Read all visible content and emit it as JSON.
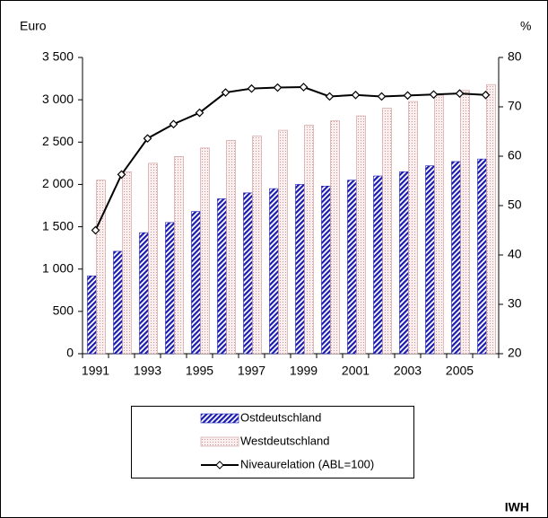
{
  "chart_data": {
    "type": "bar",
    "y_axis_label": "Euro",
    "y2_axis_label": "%",
    "source": "IWH",
    "categories": [
      "1991",
      null,
      "1993",
      null,
      "1995",
      null,
      "1997",
      null,
      "1999",
      null,
      "2001",
      null,
      "2003",
      null,
      "2005",
      null
    ],
    "series": [
      {
        "name": "Ostdeutschland",
        "color": "#1a1ab0",
        "values": [
          920,
          1210,
          1430,
          1550,
          1680,
          1830,
          1900,
          1950,
          2000,
          1980,
          2050,
          2100,
          2150,
          2220,
          2270,
          2300
        ]
      },
      {
        "name": "Westdeutschland",
        "color": "#c89898",
        "values": [
          2050,
          2150,
          2250,
          2330,
          2430,
          2520,
          2570,
          2640,
          2700,
          2750,
          2810,
          2900,
          2980,
          3050,
          3110,
          3180
        ]
      },
      {
        "name": "Niveaurelation (ABL=100)",
        "color": "#000000",
        "axis": "y2",
        "values": [
          45,
          56.3,
          63.6,
          66.5,
          68.8,
          72.9,
          73.7,
          73.9,
          74,
          72.1,
          72.4,
          72.1,
          72.3,
          72.5,
          72.7,
          72.4
        ]
      }
    ],
    "ylim": [
      0,
      3500
    ],
    "yticks": [
      0,
      500,
      {
        "value": 1000,
        "label": "1 000"
      },
      {
        "value": 1500,
        "label": "1 500"
      },
      {
        "value": 2000,
        "label": "2 000"
      },
      {
        "value": 2500,
        "label": "2 500"
      },
      {
        "value": 3000,
        "label": "3 000"
      },
      {
        "value": 3500,
        "label": "3 500"
      }
    ],
    "y2lim": [
      20,
      80
    ],
    "y2ticks": [
      20,
      30,
      40,
      50,
      60,
      70,
      80
    ]
  }
}
